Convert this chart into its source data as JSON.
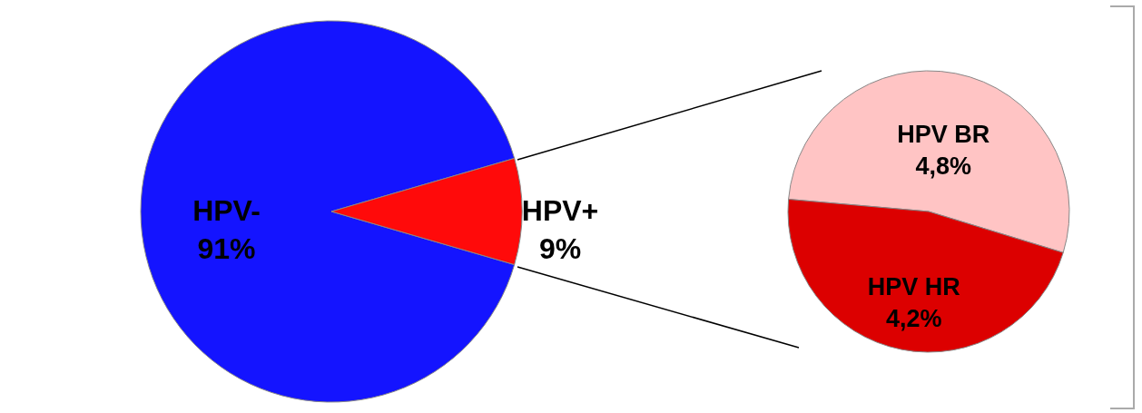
{
  "chart_data": [
    {
      "type": "pie",
      "categories": [
        "HPV-",
        "HPV+"
      ],
      "values": [
        91,
        9
      ],
      "colors": [
        "#1414ff",
        "#ff0a0a"
      ],
      "value_labels": [
        "91%",
        "9%"
      ]
    },
    {
      "type": "pie",
      "categories": [
        "HPV BR",
        "HPV HR"
      ],
      "values": [
        4.8,
        4.2
      ],
      "colors": [
        "#ffc4c4",
        "#dc0000"
      ],
      "value_labels": [
        "4,8%",
        "4,2%"
      ]
    }
  ]
}
